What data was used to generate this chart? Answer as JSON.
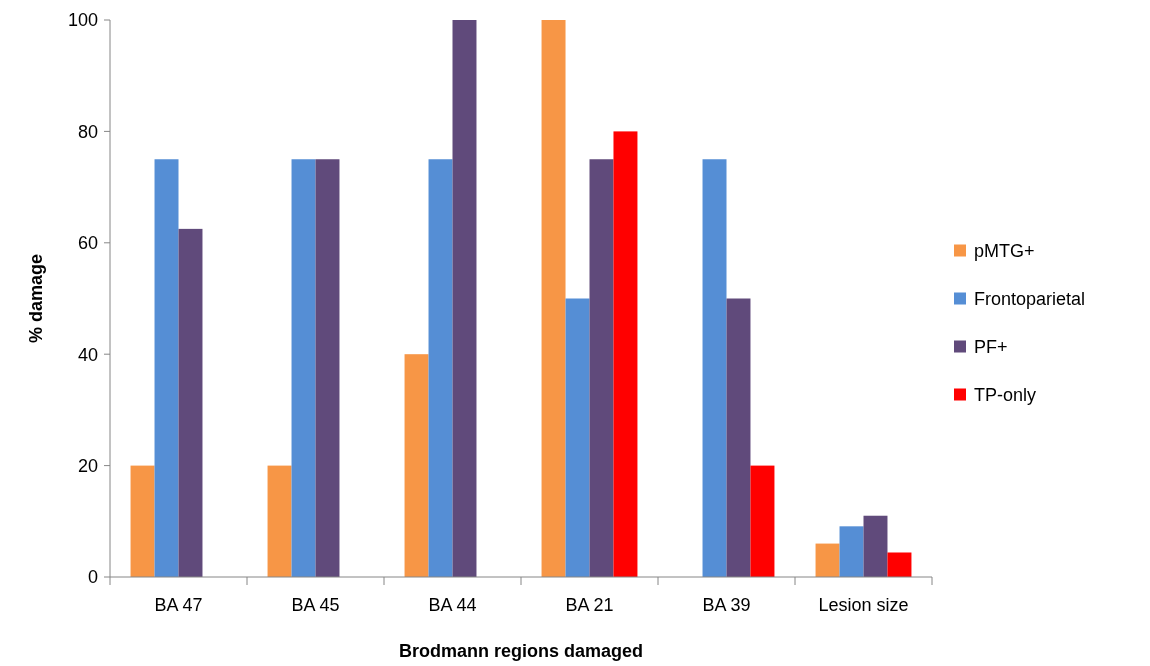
{
  "chart_data": {
    "type": "bar",
    "xlabel": "Brodmann regions damaged",
    "ylabel": "% damage",
    "categories": [
      "BA 47",
      "BA 45",
      "BA 44",
      "BA 21",
      "BA 39",
      "Lesion size"
    ],
    "series": [
      {
        "name": "pMTG+",
        "color": "#f79646",
        "values": [
          20,
          20,
          40,
          100,
          null,
          6
        ]
      },
      {
        "name": "Frontoparietal",
        "color": "#558ed5",
        "values": [
          75,
          75,
          75,
          50,
          75,
          9.1
        ]
      },
      {
        "name": "PF+",
        "color": "#604a7b",
        "values": [
          62.5,
          75,
          100,
          75,
          50,
          11
        ]
      },
      {
        "name": "TP-only",
        "color": "#ff0000",
        "values": [
          null,
          null,
          null,
          80,
          20,
          4.4
        ]
      }
    ],
    "ylim": [
      0,
      100
    ],
    "yticks": [
      0,
      20,
      40,
      60,
      80,
      100
    ],
    "grid": false,
    "legend": "right"
  }
}
